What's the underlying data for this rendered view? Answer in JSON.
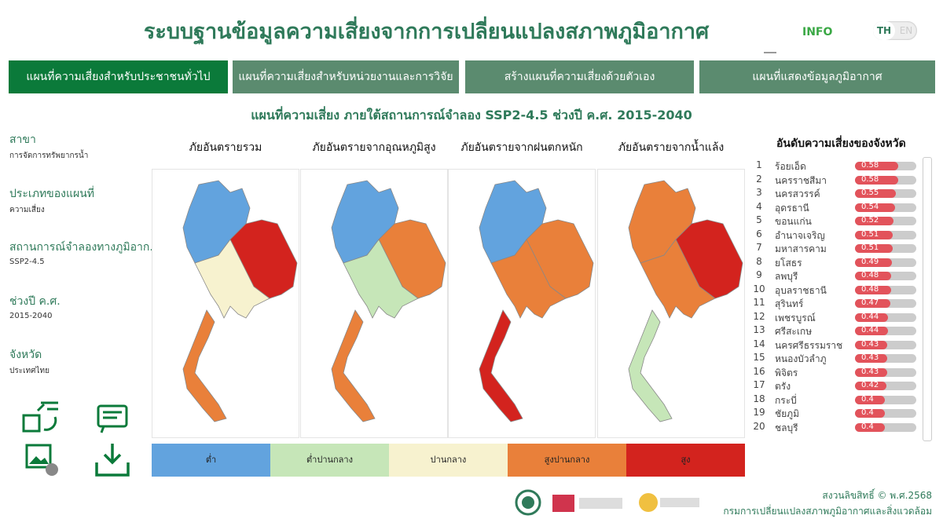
{
  "header": {
    "title": "ระบบฐานข้อมูลความเสี่ยงจากการเปลี่ยนแปลงสภาพภูมิอากาศ",
    "info": "INFO",
    "lang": [
      "TH",
      "EN"
    ]
  },
  "tabs": [
    "แผนที่ความเสี่ยงสำหรับประชาชนทั่วไป",
    "แผนที่ความเสี่ยงสำหรับหน่วยงานและการวิจัย",
    "สร้างแผนที่ความเสี่ยงด้วยตัวเอง",
    "แผนที่แสดงข้อมูลภูมิอากาศ"
  ],
  "subtitle": "แผนที่ความเสี่ยง ภายใต้สถานการณ์จำลอง SSP2-4.5 ช่วงปี ค.ศ. 2015-2040",
  "filters": [
    {
      "label": "สาขา",
      "value": "การจัดการทรัพยากรน้ำ"
    },
    {
      "label": "ประเภทของแผนที่",
      "value": "ความเสี่ยง"
    },
    {
      "label": "สถานการณ์จำลองทางภูมิอาก..",
      "value": "SSP2-4.5"
    },
    {
      "label": "ช่วงปี ค.ศ.",
      "value": "2015-2040"
    },
    {
      "label": "จังหวัด",
      "value": "ประเทศไทย"
    }
  ],
  "maps": [
    "ภัยอันตรายรวม",
    "ภัยอันตรายจากอุณหภูมิสูง",
    "ภัยอันตรายจากฝนตกหนัก",
    "ภัยอันตรายจากน้ำแล้ง"
  ],
  "legend": [
    {
      "label": "ต่ำ",
      "color": "#62a3de"
    },
    {
      "label": "ต่ำปานกลาง",
      "color": "#c6e6b8"
    },
    {
      "label": "ปานกลาง",
      "color": "#f7f2cf"
    },
    {
      "label": "สูงปานกลาง",
      "color": "#e9803a"
    },
    {
      "label": "สูง",
      "color": "#d3231e"
    }
  ],
  "ranking": {
    "title": "อันดับความเสี่ยงของจังหวัด",
    "rows": [
      {
        "rank": 1,
        "province": "ร้อยเอ็ด",
        "score": 0.58
      },
      {
        "rank": 2,
        "province": "นครราชสีมา",
        "score": 0.58
      },
      {
        "rank": 3,
        "province": "นครสวรรค์",
        "score": 0.55
      },
      {
        "rank": 4,
        "province": "อุดรธานี",
        "score": 0.54
      },
      {
        "rank": 5,
        "province": "ขอนแก่น",
        "score": 0.52
      },
      {
        "rank": 6,
        "province": "อำนาจเจริญ",
        "score": 0.51
      },
      {
        "rank": 7,
        "province": "มหาสารคาม",
        "score": 0.51
      },
      {
        "rank": 8,
        "province": "ยโสธร",
        "score": 0.49
      },
      {
        "rank": 9,
        "province": "ลพบุรี",
        "score": 0.48
      },
      {
        "rank": 10,
        "province": "อุบลราชธานี",
        "score": 0.48
      },
      {
        "rank": 11,
        "province": "สุรินทร์",
        "score": 0.47
      },
      {
        "rank": 12,
        "province": "เพชรบูรณ์",
        "score": 0.44
      },
      {
        "rank": 13,
        "province": "ศรีสะเกษ",
        "score": 0.44
      },
      {
        "rank": 14,
        "province": "นครศรีธรรมราช",
        "score": 0.43
      },
      {
        "rank": 15,
        "province": "หนองบัวลำภู",
        "score": 0.43
      },
      {
        "rank": 16,
        "province": "พิจิตร",
        "score": 0.43
      },
      {
        "rank": 17,
        "province": "ตรัง",
        "score": 0.42
      },
      {
        "rank": 18,
        "province": "กระบี่",
        "score": 0.4
      },
      {
        "rank": 19,
        "province": "ชัยภูมิ",
        "score": 0.4
      },
      {
        "rank": 20,
        "province": "ชลบุรี",
        "score": 0.4
      }
    ]
  },
  "footer": {
    "copyright": "สงวนลิขสิทธิ์ © พ.ศ.2568",
    "org": "กรมการเปลี่ยนแปลงสภาพภูมิอากาศและสิ่งแวดล้อม"
  }
}
